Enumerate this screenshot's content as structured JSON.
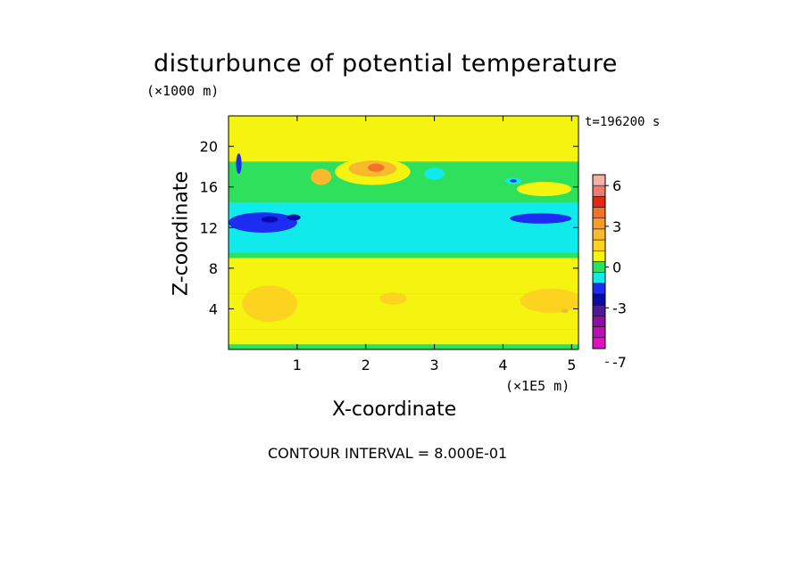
{
  "chart_data": {
    "type": "heatmap",
    "title": "disturbunce of potential temperature",
    "xlabel": "X-coordinate",
    "ylabel": "Z-coordinate",
    "x_unit": "(×1E5 m)",
    "y_unit": "(×1000 m)",
    "time_label": "t=196200 s",
    "footer": "CONTOUR INTERVAL = 8.000E-01",
    "xlim": [
      0,
      5.1
    ],
    "ylim": [
      0,
      23
    ],
    "x_ticks": [
      1,
      2,
      3,
      4,
      5
    ],
    "x_tick_labels": [
      "1",
      "2",
      "3",
      "4",
      "5"
    ],
    "y_ticks": [
      4,
      8,
      12,
      16,
      20
    ],
    "y_tick_labels": [
      "4",
      "8",
      "12",
      "16",
      "20"
    ],
    "contour_interval": 0.8,
    "colorbar": {
      "ticks": [
        6,
        3,
        0,
        -3,
        -7
      ],
      "tick_labels": [
        "6",
        "3",
        "0",
        "-3",
        "-7"
      ],
      "levels": [
        {
          "value": 6.4,
          "color": "#f6b0a8"
        },
        {
          "value": 5.6,
          "color": "#ee7c6e"
        },
        {
          "value": 4.8,
          "color": "#e8280c"
        },
        {
          "value": 4.0,
          "color": "#f07428"
        },
        {
          "value": 3.2,
          "color": "#f79a2e"
        },
        {
          "value": 2.4,
          "color": "#f9b92e"
        },
        {
          "value": 1.6,
          "color": "#fcd420"
        },
        {
          "value": 0.8,
          "color": "#f4f410"
        },
        {
          "value": 0.0,
          "color": "#2ee05c"
        },
        {
          "value": -0.8,
          "color": "#10eaea"
        },
        {
          "value": -1.6,
          "color": "#1c2cf0"
        },
        {
          "value": -2.4,
          "color": "#0a0aa8"
        },
        {
          "value": -3.2,
          "color": "#4c1a9a"
        },
        {
          "value": -4.0,
          "color": "#8c10a0"
        },
        {
          "value": -4.8,
          "color": "#b410b4"
        },
        {
          "value": -5.6,
          "color": "#e010c0"
        }
      ]
    },
    "regions": [
      {
        "kind": "band",
        "z": [
          0,
          23
        ],
        "value": 0.0,
        "color": "#2ee05c"
      },
      {
        "kind": "band",
        "z": [
          5.5,
          9.0
        ],
        "value": 0.8,
        "color": "#f4f410"
      },
      {
        "kind": "band",
        "z": [
          0.5,
          2.0
        ],
        "value": 0.8,
        "color": "#f4f410"
      },
      {
        "kind": "band",
        "z": [
          2.0,
          5.5
        ],
        "value": 0.8,
        "color": "#f4f410"
      },
      {
        "kind": "band",
        "z": [
          9.5,
          14.5
        ],
        "value": -0.8,
        "color": "#10eaea"
      },
      {
        "kind": "band",
        "z": [
          18.5,
          23
        ],
        "value": 0.8,
        "color": "#f4f410"
      },
      {
        "kind": "blob",
        "x": 0.6,
        "z": 4.5,
        "rx": 0.4,
        "rz": 1.8,
        "value": 1.6,
        "color": "#fcd420"
      },
      {
        "kind": "blob",
        "x": 2.4,
        "z": 5.0,
        "rx": 0.2,
        "rz": 0.6,
        "value": 1.6,
        "color": "#fcd420"
      },
      {
        "kind": "blob",
        "x": 4.7,
        "z": 4.8,
        "rx": 0.45,
        "rz": 1.2,
        "value": 1.6,
        "color": "#fcd420"
      },
      {
        "kind": "blob",
        "x": 4.9,
        "z": 3.8,
        "rx": 0.05,
        "rz": 0.2,
        "value": 2.4,
        "color": "#f9b92e"
      },
      {
        "kind": "blob",
        "x": 0.5,
        "z": 12.5,
        "rx": 0.5,
        "rz": 1.0,
        "value": -1.6,
        "color": "#1c2cf0"
      },
      {
        "kind": "blob",
        "x": 0.6,
        "z": 12.8,
        "rx": 0.12,
        "rz": 0.3,
        "value": -2.4,
        "color": "#0a0aa8"
      },
      {
        "kind": "blob",
        "x": 0.95,
        "z": 13.0,
        "rx": 0.1,
        "rz": 0.3,
        "value": -2.4,
        "color": "#0a0aa8"
      },
      {
        "kind": "blob",
        "x": 4.55,
        "z": 12.9,
        "rx": 0.45,
        "rz": 0.5,
        "value": -1.6,
        "color": "#1c2cf0"
      },
      {
        "kind": "blob",
        "x": 2.1,
        "z": 17.5,
        "rx": 0.55,
        "rz": 1.3,
        "value": 0.8,
        "color": "#f4f410"
      },
      {
        "kind": "blob",
        "x": 2.1,
        "z": 17.8,
        "rx": 0.35,
        "rz": 0.8,
        "value": 2.4,
        "color": "#f9b92e"
      },
      {
        "kind": "blob",
        "x": 2.15,
        "z": 17.9,
        "rx": 0.12,
        "rz": 0.4,
        "value": 4.0,
        "color": "#f07428"
      },
      {
        "kind": "blob",
        "x": 1.35,
        "z": 17.0,
        "rx": 0.15,
        "rz": 0.8,
        "value": 2.4,
        "color": "#f9b92e"
      },
      {
        "kind": "blob",
        "x": 0.15,
        "z": 18.3,
        "rx": 0.04,
        "rz": 1.0,
        "value": -1.6,
        "color": "#1c2cf0"
      },
      {
        "kind": "blob",
        "x": 4.15,
        "z": 16.6,
        "rx": 0.12,
        "rz": 0.3,
        "value": -0.8,
        "color": "#10eaea"
      },
      {
        "kind": "blob",
        "x": 4.15,
        "z": 16.6,
        "rx": 0.05,
        "rz": 0.15,
        "value": -1.6,
        "color": "#1c2cf0"
      },
      {
        "kind": "blob",
        "x": 3.0,
        "z": 17.3,
        "rx": 0.15,
        "rz": 0.6,
        "value": -0.8,
        "color": "#10eaea"
      },
      {
        "kind": "blob",
        "x": 4.6,
        "z": 15.8,
        "rx": 0.4,
        "rz": 0.7,
        "value": 0.8,
        "color": "#f4f410"
      }
    ]
  }
}
